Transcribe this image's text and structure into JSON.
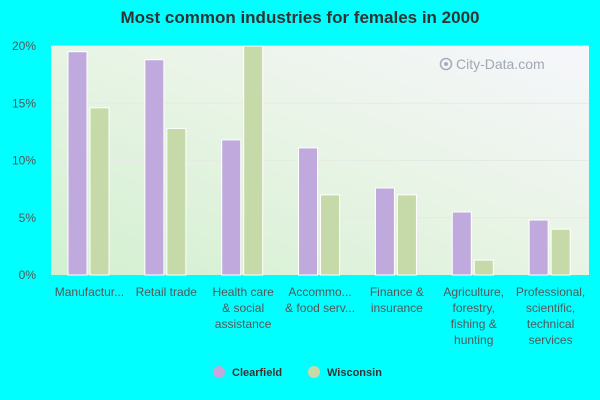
{
  "chart_data": {
    "type": "bar",
    "title": "Most common industries for females in 2000",
    "xlabel": "",
    "ylabel": "",
    "ylim": [
      0,
      20
    ],
    "yticks": [
      "0%",
      "5%",
      "10%",
      "15%",
      "20%"
    ],
    "ytick_values": [
      0,
      5,
      10,
      15,
      20
    ],
    "categories": [
      "Manufactur...",
      "Retail trade",
      "Health care & social assistance",
      "Accommo... & food serv...",
      "Finance & insurance",
      "Agriculture, forestry, fishing & hunting",
      "Professional, scientific, technical services"
    ],
    "category_lines": [
      [
        "Manufactur..."
      ],
      [
        "Retail trade"
      ],
      [
        "Health care",
        "& social",
        "assistance"
      ],
      [
        "Accommo...",
        "& food serv..."
      ],
      [
        "Finance &",
        "insurance"
      ],
      [
        "Agriculture,",
        "forestry,",
        "fishing &",
        "hunting"
      ],
      [
        "Professional,",
        "scientific,",
        "technical",
        "services"
      ]
    ],
    "series": [
      {
        "name": "Clearfield",
        "color": "#c0a9dc",
        "values": [
          19.5,
          18.8,
          11.8,
          11.1,
          7.6,
          5.5,
          4.8
        ]
      },
      {
        "name": "Wisconsin",
        "color": "#c6d9a8",
        "values": [
          14.6,
          12.8,
          20.0,
          7.0,
          7.0,
          1.3,
          4.0
        ]
      }
    ],
    "legend_position": "bottom",
    "grid": true,
    "watermark": "City-Data.com"
  }
}
